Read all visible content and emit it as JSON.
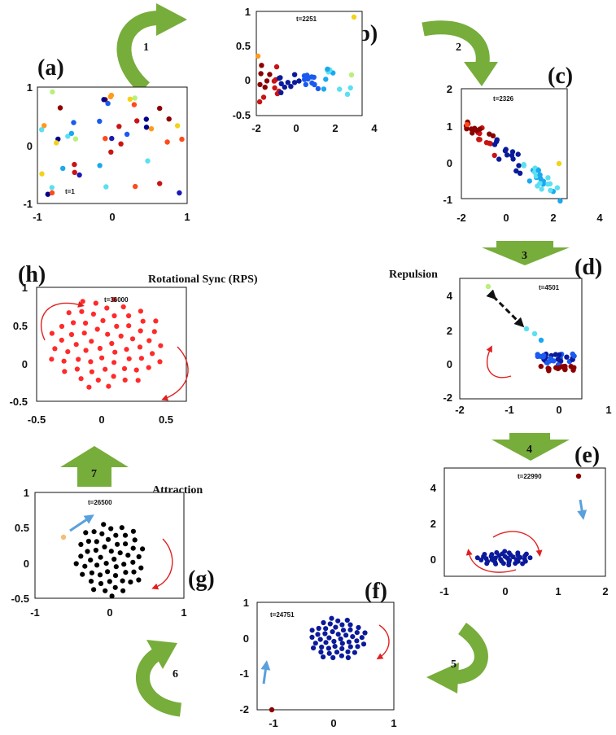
{
  "colors": {
    "arrow_green": "#77ad3b",
    "arrow_green_dark": "#5a8a2a",
    "dot_red": "#ff2a2a",
    "dot_navy": "#0b1a9a",
    "dot_black": "#000000",
    "curl_red": "#e02020",
    "push_blue": "#5aa0dc"
  },
  "steps": [
    "1",
    "2",
    "3",
    "4",
    "5",
    "6",
    "7"
  ],
  "captions": {
    "repulsion": "Repulsion",
    "rotational_sync": "Rotational Sync (RPS)",
    "attraction": "Attraction"
  },
  "panels": {
    "a": {
      "letter": "(a)",
      "t_label": "t=1",
      "xticks": [
        "-1",
        "0",
        "1"
      ],
      "yticks": [
        "1",
        "0",
        "-1"
      ],
      "xlim": [
        -1,
        1
      ],
      "ylim": [
        -1,
        1
      ],
      "state": "random"
    },
    "b": {
      "letter": "(b)",
      "t_label": "t=2251",
      "xticks": [
        "-2",
        "0",
        "2",
        "4"
      ],
      "yticks": [
        "1",
        "0.5",
        "0",
        "-0.5"
      ],
      "xlim": [
        -2,
        4
      ],
      "ylim": [
        -0.5,
        1
      ],
      "state": "bowtie"
    },
    "c": {
      "letter": "(c)",
      "t_label": "t=2326",
      "xticks": [
        "-2",
        "0",
        "2",
        "4"
      ],
      "yticks": [
        "2",
        "1",
        "0",
        "-1"
      ],
      "xlim": [
        -2,
        4
      ],
      "ylim": [
        -1,
        2
      ],
      "state": "diagonal"
    },
    "d": {
      "letter": "(d)",
      "t_label": "t=4501",
      "xticks": [
        "-2",
        "-1",
        "0",
        "1"
      ],
      "yticks": [
        "4",
        "2",
        "0",
        "-2"
      ],
      "xlim": [
        -2,
        1
      ],
      "ylim": [
        -2,
        5
      ],
      "state": "repulsion"
    },
    "e": {
      "letter": "(e)",
      "t_label": "t=22990",
      "xticks": [
        "-1",
        "0",
        "1",
        "2"
      ],
      "yticks": [
        "4",
        "2",
        "0"
      ],
      "xlim": [
        -1,
        2
      ],
      "ylim": [
        -1,
        5
      ],
      "state": "navy-ellipse"
    },
    "f": {
      "letter": "(f)",
      "t_label": "t=24751",
      "xticks": [
        "-1",
        "0",
        "1"
      ],
      "yticks": [
        "1",
        "0",
        "-1",
        "-2"
      ],
      "xlim": [
        -1.5,
        1
      ],
      "ylim": [
        -2,
        1
      ],
      "state": "navy-cluster"
    },
    "g": {
      "letter": "(g)",
      "t_label": "t=26500",
      "xticks": [
        "-1",
        "0",
        "1"
      ],
      "yticks": [
        "1",
        "0.5",
        "0",
        "-0.5"
      ],
      "xlim": [
        -1,
        1
      ],
      "ylim": [
        -0.5,
        1
      ],
      "state": "black-disk"
    },
    "h": {
      "letter": "(h)",
      "t_label": "t=36000",
      "xticks": [
        "-0.5",
        "0",
        "0.5"
      ],
      "yticks": [
        "1",
        "0.5",
        "0",
        "-0.5"
      ],
      "xlim": [
        -0.5,
        0.65
      ],
      "ylim": [
        -0.5,
        1
      ],
      "state": "red-disk"
    }
  }
}
